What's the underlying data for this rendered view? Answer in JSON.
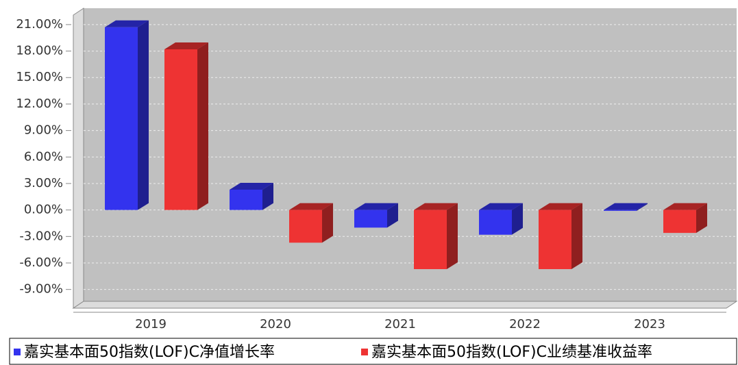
{
  "chart_data": {
    "type": "bar3d",
    "categories": [
      "2019",
      "2020",
      "2021",
      "2022",
      "2023"
    ],
    "series": [
      {
        "name": "嘉实基本面50指数(LOF)C净值增长率",
        "color": "#3333ee",
        "values": [
          20.7,
          2.3,
          -2.0,
          -2.8,
          -0.1
        ]
      },
      {
        "name": "嘉实基本面50指数(LOF)C业绩基准收益率",
        "color": "#ee3333",
        "values": [
          18.2,
          -3.7,
          -6.7,
          -6.7,
          -2.6
        ]
      }
    ],
    "ylim": [
      -10.5,
      22
    ],
    "yticks": [
      {
        "value": -9,
        "label": "-9.00%"
      },
      {
        "value": -6,
        "label": "-6.00%"
      },
      {
        "value": -3,
        "label": "-3.00%"
      },
      {
        "value": 0,
        "label": "0.00%"
      },
      {
        "value": 3,
        "label": "3.00%"
      },
      {
        "value": 6,
        "label": "6.00%"
      },
      {
        "value": 9,
        "label": "9.00%"
      },
      {
        "value": 12,
        "label": "12.00%"
      },
      {
        "value": 15,
        "label": "15.00%"
      },
      {
        "value": 18,
        "label": "18.00%"
      },
      {
        "value": 21,
        "label": "21.00%"
      }
    ],
    "grid": true
  }
}
